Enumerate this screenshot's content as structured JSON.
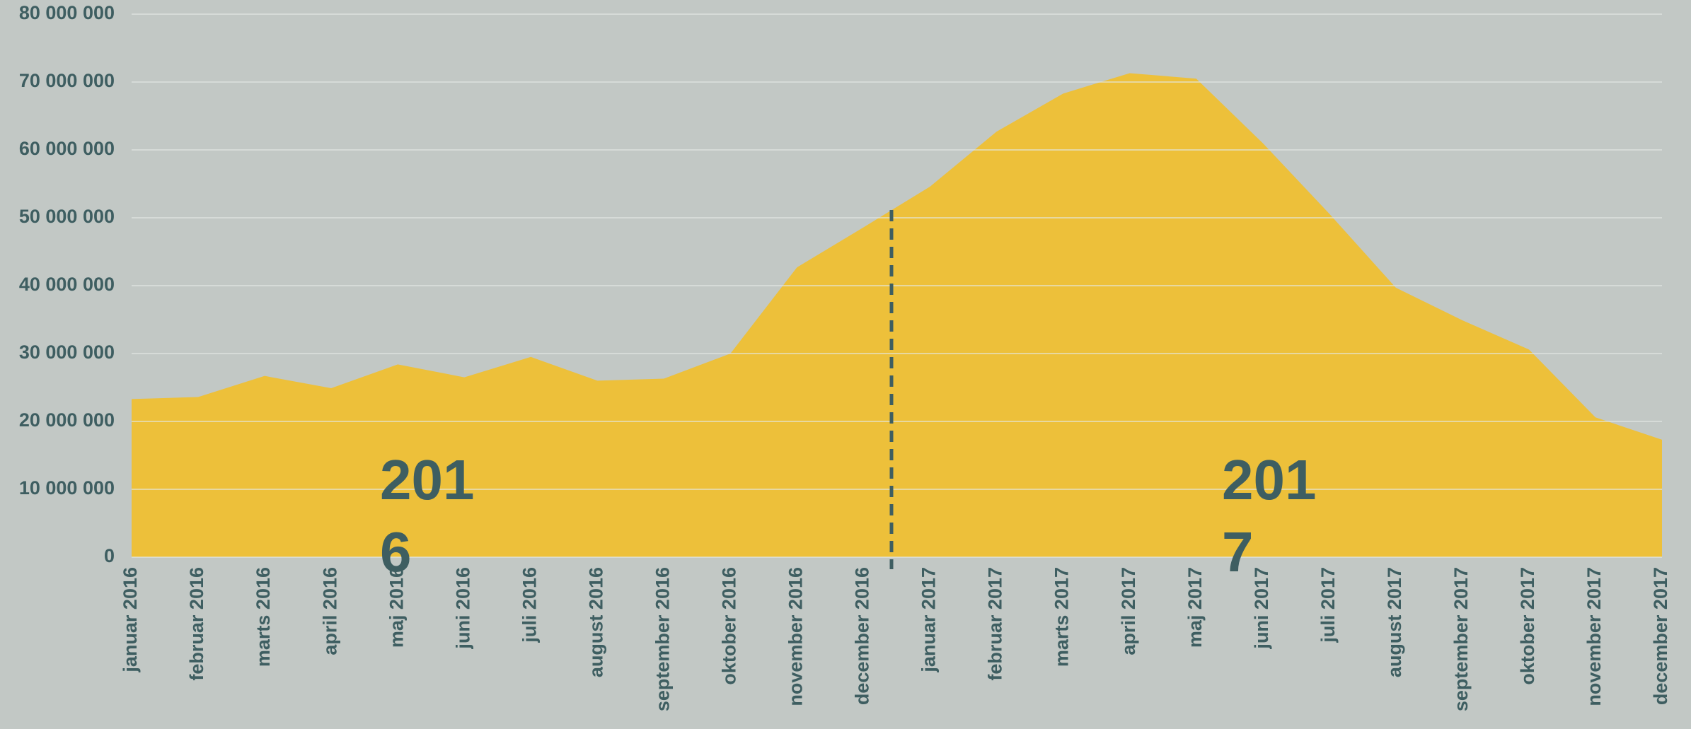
{
  "chart_data": {
    "type": "area",
    "categories": [
      "januar 2016",
      "februar 2016",
      "marts 2016",
      "april 2016",
      "maj 2016",
      "juni 2016",
      "juli 2016",
      "august 2016",
      "september 2016",
      "oktober 2016",
      "november 2016",
      "december 2016",
      "januar 2017",
      "februar 2017",
      "marts 2017",
      "april 2017",
      "maj 2017",
      "juni 2017",
      "juli 2017",
      "august 2017",
      "september 2017",
      "oktober 2017",
      "november 2017",
      "december 2017"
    ],
    "values": [
      23300000,
      23600000,
      26700000,
      24900000,
      28400000,
      26500000,
      29500000,
      26000000,
      26300000,
      30000000,
      42700000,
      48600000,
      54600000,
      62700000,
      68300000,
      71300000,
      70500000,
      61000000,
      50600000,
      39700000,
      34900000,
      30600000,
      20600000,
      17300000
    ],
    "color": "#edc03a",
    "ylim": [
      0,
      80000000
    ],
    "yticks": [
      {
        "value": 0,
        "label": "0"
      },
      {
        "value": 10000000,
        "label": "10 000 000"
      },
      {
        "value": 20000000,
        "label": "20 000 000"
      },
      {
        "value": 30000000,
        "label": "30 000 000"
      },
      {
        "value": 40000000,
        "label": "40 000 000"
      },
      {
        "value": 50000000,
        "label": "50 000 000"
      },
      {
        "value": 60000000,
        "label": "60 000 000"
      },
      {
        "value": 70000000,
        "label": "70 000 000"
      },
      {
        "value": 80000000,
        "label": "80 000 000"
      }
    ],
    "grid": true,
    "annotations": [
      "2016",
      "2017"
    ]
  }
}
